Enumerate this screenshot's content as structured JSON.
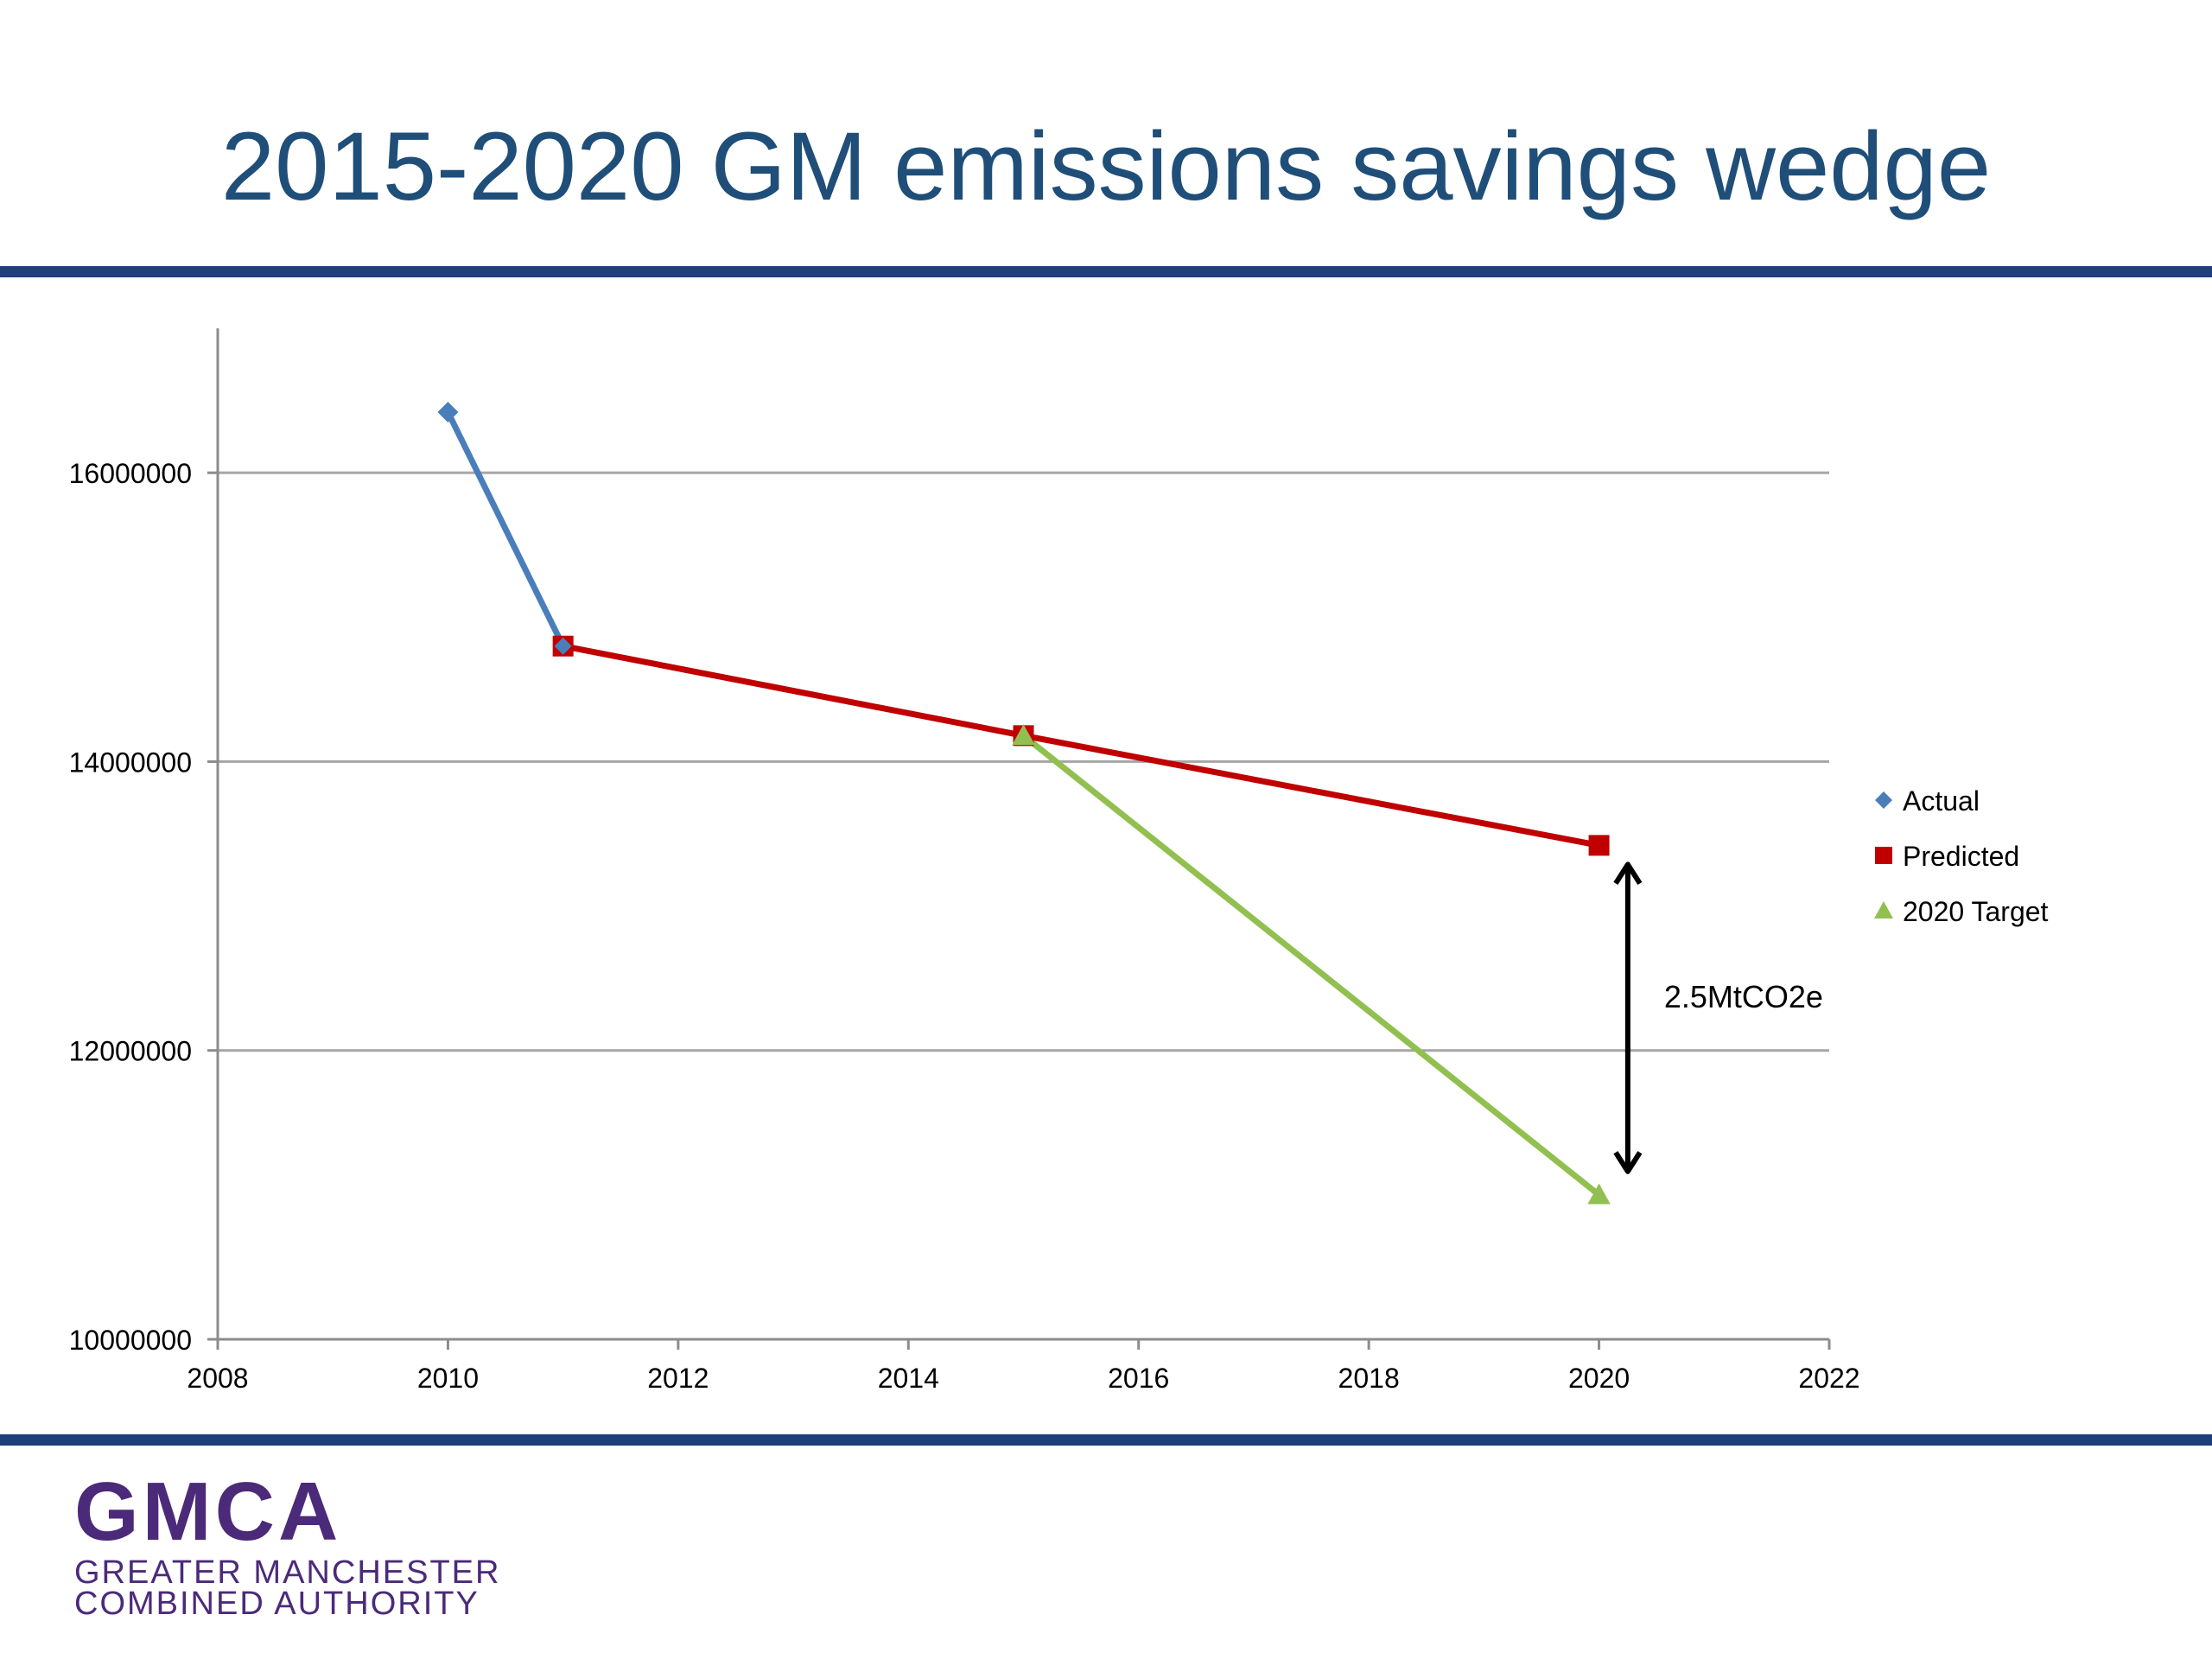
{
  "slide": {
    "title": "2015-2020 GM emissions savings wedge"
  },
  "logo": {
    "mark": "GMCA",
    "line1": "GREATER MANCHESTER",
    "line2": "COMBINED AUTHORITY",
    "color": "#4b2a7a"
  },
  "colors": {
    "rule": "#1f3f7a",
    "title": "#1f4e79"
  },
  "chart_data": {
    "type": "line",
    "title": "",
    "xlabel": "",
    "ylabel": "",
    "xlim": [
      2008,
      2022
    ],
    "ylim": [
      10000000,
      17000000
    ],
    "x_ticks": [
      2008,
      2010,
      2012,
      2014,
      2016,
      2018,
      2020,
      2022
    ],
    "y_ticks": [
      10000000,
      12000000,
      14000000,
      16000000
    ],
    "grid": "horizontal",
    "legend_position": "right",
    "series": [
      {
        "name": "Actual",
        "color": "#4a7ebb",
        "marker": "diamond",
        "points": [
          [
            2010,
            16420000
          ],
          [
            2011,
            14800000
          ]
        ]
      },
      {
        "name": "Predicted",
        "color": "#c00000",
        "marker": "square",
        "points": [
          [
            2011,
            14800000
          ],
          [
            2015,
            14180000
          ],
          [
            2020,
            13420000
          ]
        ]
      },
      {
        "name": "2020 Target",
        "color": "#92c050",
        "marker": "triangle",
        "points": [
          [
            2015,
            14180000
          ],
          [
            2020,
            11000000
          ]
        ]
      }
    ],
    "annotation": {
      "label": "2.5MtCO2e",
      "x": 2020.25,
      "y_from": 13300000,
      "y_to": 11150000
    }
  }
}
